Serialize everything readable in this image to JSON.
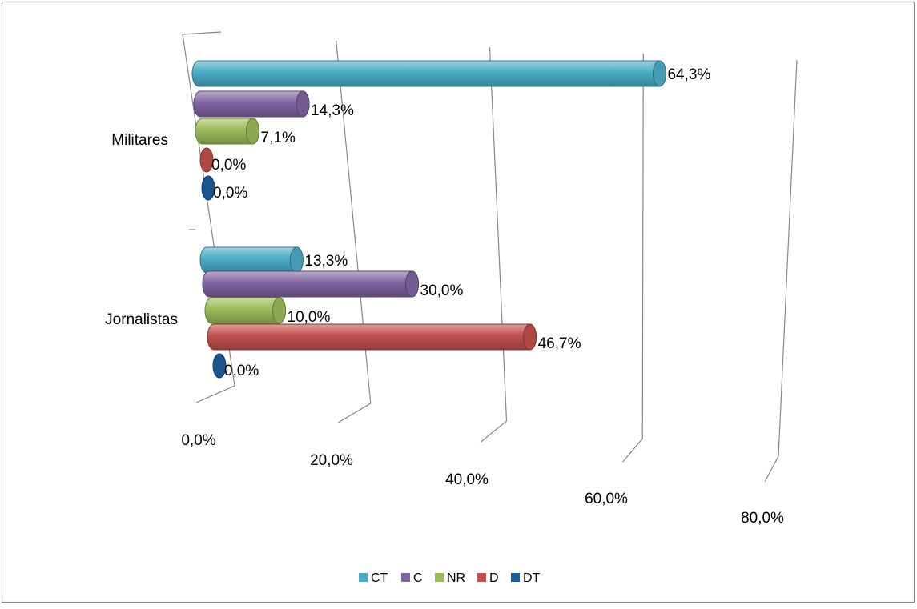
{
  "chart_data": {
    "type": "bar",
    "orientation": "horizontal",
    "style": "3d-cylinder",
    "categories": [
      "Militares",
      "Jornalistas"
    ],
    "series": [
      {
        "name": "CT",
        "color": "#4BACC6",
        "values": [
          64.3,
          13.3
        ],
        "labels": [
          "64,3%",
          "13,3%"
        ]
      },
      {
        "name": "C",
        "color": "#8064A2",
        "values": [
          14.3,
          30.0
        ],
        "labels": [
          "14,3%",
          "30,0%"
        ]
      },
      {
        "name": "NR",
        "color": "#9BBB59",
        "values": [
          7.1,
          10.0
        ],
        "labels": [
          "7,1%",
          "10,0%"
        ]
      },
      {
        "name": "D",
        "color": "#C0504D",
        "values": [
          0.0,
          46.7
        ],
        "labels": [
          "0,0%",
          "46,7%"
        ]
      },
      {
        "name": "DT",
        "color": "#1F5C99",
        "values": [
          0.0,
          0.0
        ],
        "labels": [
          "0,0%",
          "0,0%"
        ]
      }
    ],
    "x_ticks": [
      0,
      20,
      40,
      60,
      80
    ],
    "x_tick_labels": [
      "0,0%",
      "20,0%",
      "40,0%",
      "60,0%",
      "80,0%"
    ],
    "xlim": [
      0,
      80
    ],
    "title": "",
    "xlabel": "",
    "ylabel": "",
    "grid": true,
    "legend_position": "bottom"
  }
}
